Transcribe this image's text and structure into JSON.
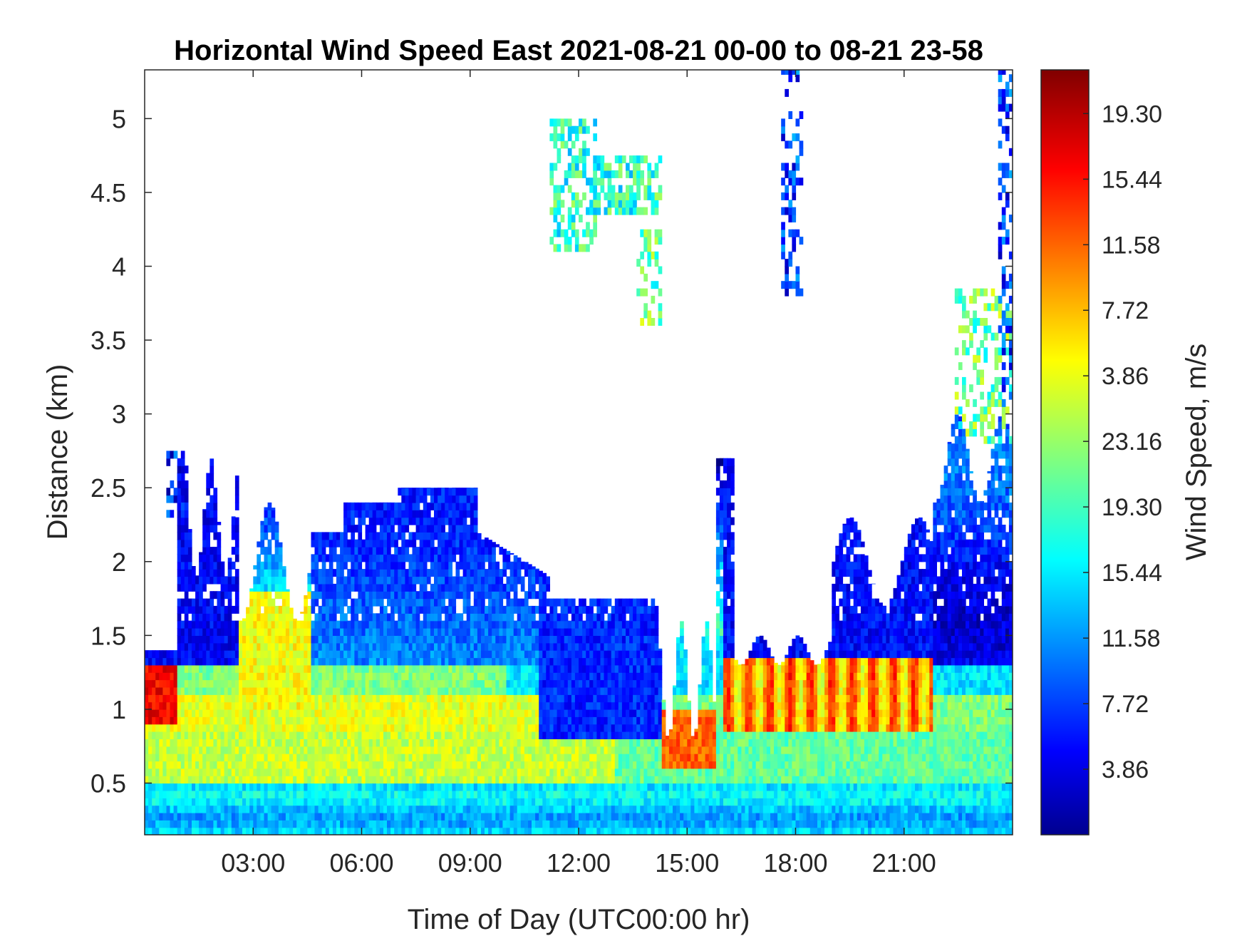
{
  "chart_data": {
    "type": "heatmap",
    "title": "Horizontal Wind Speed East 2021-08-21 00-00 to 08-21 23-58",
    "xlabel": "Time of Day (UTC00:00 hr)",
    "ylabel": "Distance (km)",
    "colorbar_label": "Wind Speed, m/s",
    "colormap": "jet",
    "xlim_hours": [
      0,
      24
    ],
    "ylim": [
      0.15,
      5.33
    ],
    "x_ticks": [
      {
        "value": 3,
        "label": "03:00"
      },
      {
        "value": 6,
        "label": "06:00"
      },
      {
        "value": 9,
        "label": "09:00"
      },
      {
        "value": 12,
        "label": "12:00"
      },
      {
        "value": 15,
        "label": "15:00"
      },
      {
        "value": 18,
        "label": "18:00"
      },
      {
        "value": 21,
        "label": "21:00"
      }
    ],
    "y_ticks": [
      {
        "value": 0.5,
        "label": "0.5"
      },
      {
        "value": 1,
        "label": "1"
      },
      {
        "value": 1.5,
        "label": "1.5"
      },
      {
        "value": 2,
        "label": "2"
      },
      {
        "value": 2.5,
        "label": "2.5"
      },
      {
        "value": 3,
        "label": "3"
      },
      {
        "value": 3.5,
        "label": "3.5"
      },
      {
        "value": 4,
        "label": "4"
      },
      {
        "value": 4.5,
        "label": "4.5"
      },
      {
        "value": 5,
        "label": "5"
      }
    ],
    "colorbar_ticks": [
      {
        "fraction": 0.0857,
        "label": "3.86"
      },
      {
        "fraction": 0.1714,
        "label": "7.72"
      },
      {
        "fraction": 0.2571,
        "label": "11.58"
      },
      {
        "fraction": 0.3429,
        "label": "15.44"
      },
      {
        "fraction": 0.4286,
        "label": "19.30"
      },
      {
        "fraction": 0.5143,
        "label": "23.16"
      },
      {
        "fraction": 0.6,
        "label": "3.86"
      },
      {
        "fraction": 0.6857,
        "label": "7.72"
      },
      {
        "fraction": 0.7714,
        "label": "11.58"
      },
      {
        "fraction": 0.8571,
        "label": "15.44"
      },
      {
        "fraction": 0.9429,
        "label": "19.30"
      }
    ],
    "grid": false,
    "approx_regions": [
      {
        "hours": [
          0,
          24
        ],
        "km": [
          0.15,
          0.85
        ],
        "speed_level": 0.38,
        "desc": "near-surface band, cyan to green"
      },
      {
        "hours": [
          0,
          13
        ],
        "km": [
          0.6,
          1.1
        ],
        "speed_level": 0.62,
        "desc": "yellow-green low jet"
      },
      {
        "hours": [
          4.6,
          10.9
        ],
        "km": [
          1.3,
          2.2
        ],
        "speed_level": 0.15,
        "desc": "deep blue layer"
      },
      {
        "hours": [
          10.6,
          14.3
        ],
        "km": [
          0.8,
          1.5
        ],
        "speed_level": 0.2,
        "desc": "blue upper layer"
      },
      {
        "hours": [
          16,
          21.8
        ],
        "km": [
          0.85,
          1.35
        ],
        "speed_level": 0.8,
        "desc": "red/orange jet"
      },
      {
        "hours": [
          21.8,
          24
        ],
        "km": [
          1.3,
          3.4
        ],
        "speed_level": 0.2,
        "desc": "blue plume"
      },
      {
        "hours": [
          11.2,
          14.2
        ],
        "km": [
          3.6,
          5.0
        ],
        "speed_level": 0.45,
        "desc": "cyan/green aloft patches"
      }
    ]
  }
}
